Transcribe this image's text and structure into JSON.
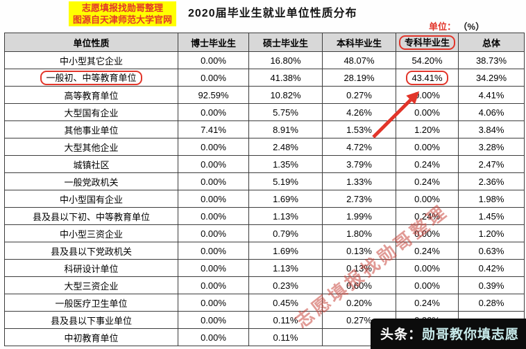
{
  "header": {
    "source_badge_line1": "志愿填报找勋哥整理",
    "source_badge_line2": "图源自天津师范大学官网",
    "title": "2020届毕业生就业单位性质分布",
    "unit_label": "单位：",
    "unit_value": "（%）"
  },
  "chart_data": {
    "type": "table",
    "title": "2020届毕业生就业单位性质分布",
    "unit": "%",
    "columns": [
      "单位性质",
      "博士毕业生",
      "硕士毕业生",
      "本科毕业生",
      "专科毕业生",
      "总体"
    ],
    "rows": [
      {
        "label": "中小型其它企业",
        "values": [
          "0.00%",
          "16.80%",
          "48.07%",
          "54.20%",
          "38.73%"
        ]
      },
      {
        "label": "一般初、中等教育单位",
        "values": [
          "0.00%",
          "41.38%",
          "28.19%",
          "43.41%",
          "34.29%"
        ]
      },
      {
        "label": "高等教育单位",
        "values": [
          "92.59%",
          "10.82%",
          "0.27%",
          "0.00%",
          "4.41%"
        ]
      },
      {
        "label": "大型国有企业",
        "values": [
          "0.00%",
          "5.75%",
          "4.26%",
          "0.00%",
          "4.06%"
        ]
      },
      {
        "label": "其他事业单位",
        "values": [
          "7.41%",
          "8.91%",
          "1.53%",
          "1.20%",
          "3.84%"
        ]
      },
      {
        "label": "大型其他企业",
        "values": [
          "0.00%",
          "2.48%",
          "4.72%",
          "0.00%",
          "3.28%"
        ]
      },
      {
        "label": "城镇社区",
        "values": [
          "0.00%",
          "1.35%",
          "3.79%",
          "0.24%",
          "2.47%"
        ]
      },
      {
        "label": "一般党政机关",
        "values": [
          "0.00%",
          "5.19%",
          "1.33%",
          "0.24%",
          "2.36%"
        ]
      },
      {
        "label": "中小型国有企业",
        "values": [
          "0.00%",
          "1.69%",
          "2.73%",
          "0.00%",
          "1.98%"
        ]
      },
      {
        "label": "县及县以下初、中等教育单位",
        "values": [
          "0.00%",
          "1.13%",
          "1.99%",
          "0.24%",
          "1.45%"
        ]
      },
      {
        "label": "中小型三资企业",
        "values": [
          "0.00%",
          "0.79%",
          "1.80%",
          "0.00%",
          "1.20%"
        ]
      },
      {
        "label": "县及县以下党政机关",
        "values": [
          "0.00%",
          "1.69%",
          "0.13%",
          "0.24%",
          "0.63%"
        ]
      },
      {
        "label": "科研设计单位",
        "values": [
          "0.00%",
          "1.13%",
          "0.13%",
          "0.00%",
          "0.42%"
        ]
      },
      {
        "label": "大型三资企业",
        "values": [
          "0.00%",
          "0.23%",
          "0.60%",
          "0.00%",
          "0.39%"
        ]
      },
      {
        "label": "一般医疗卫生单位",
        "values": [
          "0.00%",
          "0.45%",
          "0.20%",
          "0.24%",
          "0.28%"
        ]
      },
      {
        "label": "县及县以下事业单位",
        "values": [
          "0.00%",
          "0.11%",
          "0.27%",
          "0.00%",
          ""
        ]
      },
      {
        "label": "中初教育单位",
        "values": [
          "0.00%",
          "0.11%",
          "",
          "",
          ""
        ]
      }
    ],
    "highlights": {
      "header_column_index": 4,
      "row_label_index": 1,
      "cell": {
        "row_index": 1,
        "value_index": 3
      }
    }
  },
  "annotations": {
    "diagonal_watermark": "志愿填报找勋哥整理",
    "bottom_badge_prefix": "头条：",
    "bottom_badge_text": "勋哥教你填志愿",
    "arrow_meaning": "red-arrow-pointing-to-43.41%-cell"
  },
  "colors": {
    "highlight_red": "#e2352a",
    "header_bg": "#d8d8d8",
    "source_badge_bg": "#ffff00",
    "source_badge_text": "#e2352a",
    "bottom_badge_bg": "#0c0c0c"
  }
}
